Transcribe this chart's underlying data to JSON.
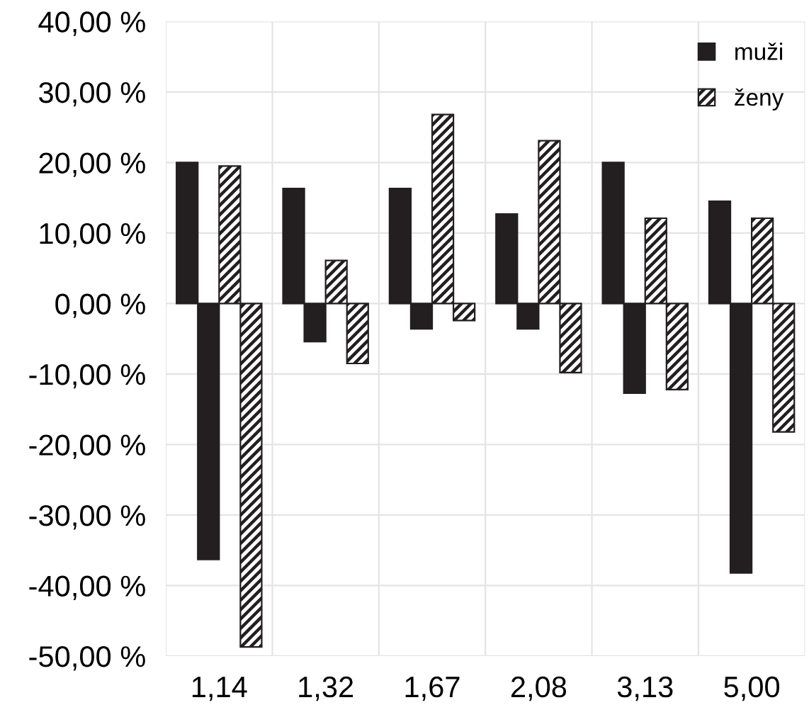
{
  "chart_data": {
    "type": "bar",
    "categories": [
      "1,14",
      "1,32",
      "1,67",
      "2,08",
      "3,13",
      "5,00"
    ],
    "series": [
      {
        "name": "muži",
        "color": "#231f20",
        "values": [
          20.0,
          16.3,
          16.3,
          12.7,
          20.0,
          14.5
        ]
      },
      {
        "color": "#231f20",
        "values": [
          -36.3,
          -5.4,
          -3.6,
          -3.6,
          -12.7,
          -38.2
        ]
      },
      {
        "name": "ženy",
        "color": "#231f20",
        "values": [
          19.5,
          6.1,
          26.8,
          23.1,
          12.1,
          12.1
        ]
      },
      {
        "color": "#231f20",
        "values": [
          -48.7,
          -8.5,
          -2.4,
          -9.8,
          -12.2,
          -18.2
        ]
      }
    ],
    "ylim": [
      -50,
      40
    ],
    "yticks": [
      {
        "value": -50,
        "label": "-50,00 %"
      },
      {
        "value": -40,
        "label": "-40,00 %"
      },
      {
        "value": -30,
        "label": "-30,00 %"
      },
      {
        "value": -20,
        "label": "-20,00 %"
      },
      {
        "value": -10,
        "label": "-10,00 %"
      },
      {
        "value": 0,
        "label": "0,00 %"
      },
      {
        "value": 10,
        "label": "10,00 %"
      },
      {
        "value": 20,
        "label": "20,00 %"
      },
      {
        "value": 30,
        "label": "30,00 %"
      },
      {
        "value": 40,
        "label": "40,00 %"
      }
    ],
    "grid": true,
    "legend": "top right"
  }
}
